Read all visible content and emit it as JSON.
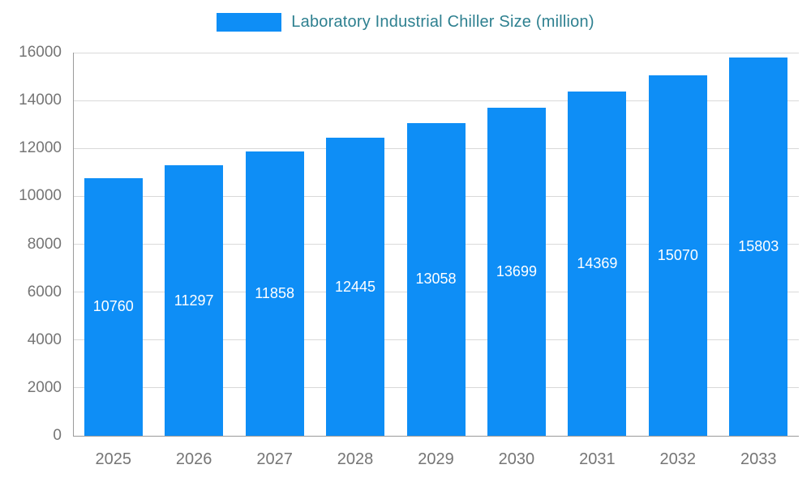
{
  "chart_data": {
    "type": "bar",
    "title": "Laboratory Industrial Chiller Size (million)",
    "categories": [
      "2025",
      "2026",
      "2027",
      "2028",
      "2029",
      "2030",
      "2031",
      "2032",
      "2033"
    ],
    "values": [
      10760,
      11297,
      11858,
      12445,
      13058,
      13699,
      14369,
      15070,
      15803
    ],
    "xlabel": "",
    "ylabel": "",
    "ylim": [
      0,
      16000
    ],
    "ytick_step": 2000,
    "ytick_labels": [
      "0",
      "2000",
      "4000",
      "6000",
      "8000",
      "10000",
      "12000",
      "14000",
      "16000"
    ],
    "grid": true,
    "legend_position": "top",
    "bar_labels_shown": true,
    "colors": {
      "bar": "#0e8ef6",
      "bar_label_text": "#ffffff",
      "legend_text": "#2e8090",
      "axis_text": "#757575",
      "gridline": "#d9d9d9",
      "axis_line": "#9a9a9a",
      "background": "#ffffff"
    }
  }
}
